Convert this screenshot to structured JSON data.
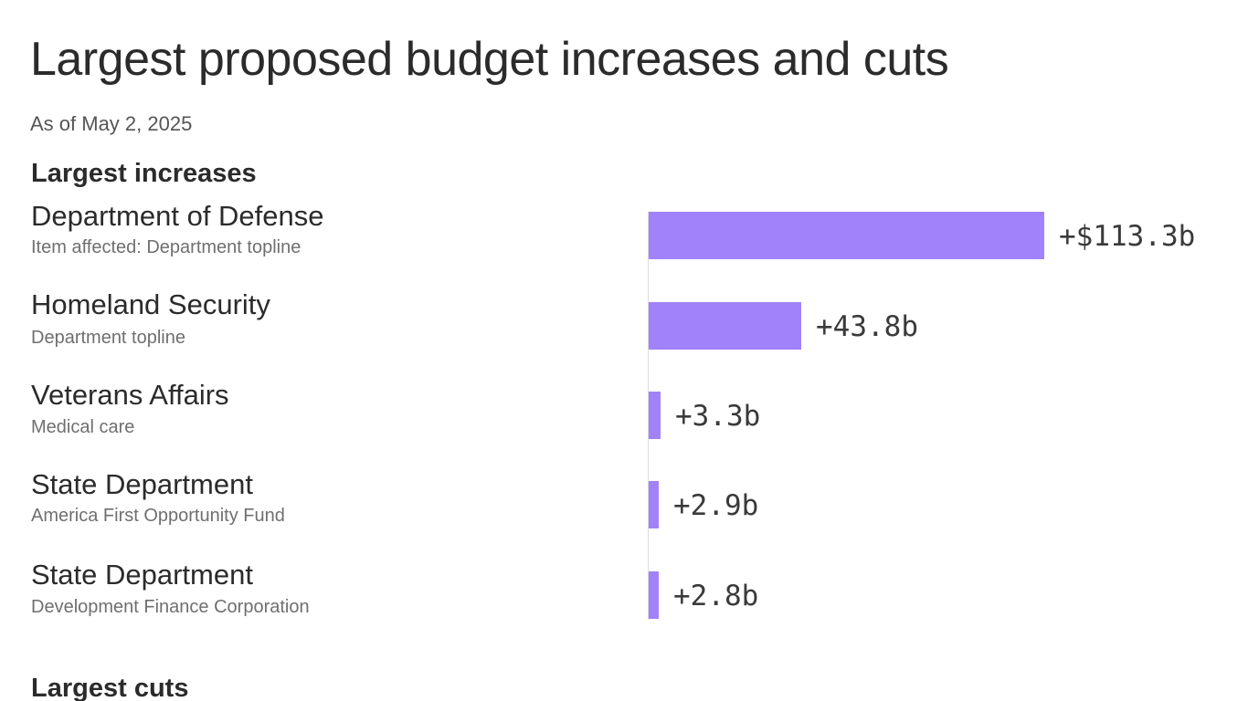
{
  "header": {
    "title": "Largest proposed budget increases and cuts",
    "subtitle": "As of May 2, 2025"
  },
  "sections": {
    "increases_heading": "Largest increases",
    "cuts_heading": "Largest cuts"
  },
  "colors": {
    "bar": "#a282fb",
    "baseline": "#dddddd"
  },
  "chart_data": {
    "type": "bar",
    "orientation": "horizontal",
    "title": "Largest proposed budget increases and cuts",
    "subtitle": "As of May 2, 2025",
    "group": "Largest increases",
    "unit": "billion USD",
    "categories": [
      "Department of Defense",
      "Homeland Security",
      "Veterans Affairs",
      "State Department",
      "State Department"
    ],
    "items": [
      "Item affected: Department topline",
      "Department topline",
      "Medical care",
      "America First Opportunity Fund",
      "Development Finance Corporation"
    ],
    "values": [
      113.3,
      43.8,
      3.3,
      2.9,
      2.8
    ],
    "value_labels": [
      "+$113.3b",
      "+43.8b",
      "+3.3b",
      "+2.9b",
      "+2.8b"
    ],
    "grid": false,
    "legend": "none"
  }
}
